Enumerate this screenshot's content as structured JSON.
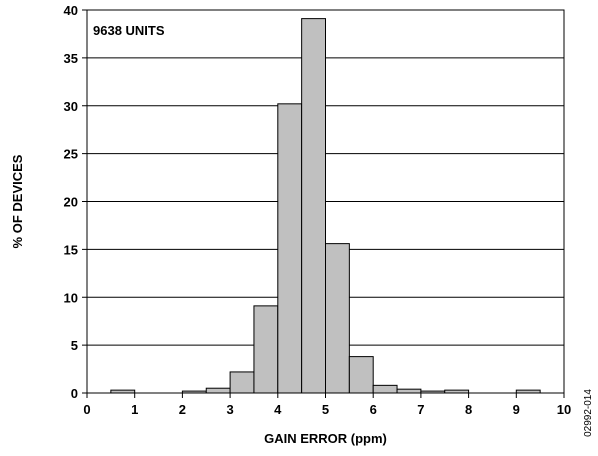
{
  "chart_data": {
    "type": "bar",
    "title": "",
    "xlabel": "GAIN ERROR (ppm)",
    "ylabel": "% OF DEVICES",
    "xlim": [
      0,
      10
    ],
    "ylim": [
      0,
      40
    ],
    "xticks": [
      "0",
      "1",
      "2",
      "3",
      "4",
      "5",
      "6",
      "7",
      "8",
      "9",
      "10"
    ],
    "yticks": [
      "0",
      "5",
      "10",
      "15",
      "20",
      "25",
      "30",
      "35",
      "40"
    ],
    "bin_width": 0.5,
    "bins": [
      {
        "x": 0.75,
        "value": 0.3
      },
      {
        "x": 2.25,
        "value": 0.2
      },
      {
        "x": 2.75,
        "value": 0.5
      },
      {
        "x": 3.25,
        "value": 2.2
      },
      {
        "x": 3.75,
        "value": 9.1
      },
      {
        "x": 4.25,
        "value": 30.2
      },
      {
        "x": 4.75,
        "value": 39.1
      },
      {
        "x": 5.25,
        "value": 15.6
      },
      {
        "x": 5.75,
        "value": 3.8
      },
      {
        "x": 6.25,
        "value": 0.8
      },
      {
        "x": 6.75,
        "value": 0.4
      },
      {
        "x": 7.25,
        "value": 0.2
      },
      {
        "x": 7.75,
        "value": 0.3
      },
      {
        "x": 9.25,
        "value": 0.3
      }
    ],
    "annotation": "9638 UNITS",
    "grid": "horizontal",
    "bar_color": "#c0c0c0",
    "edge_color": "#000000"
  },
  "figure_id": "02992-014"
}
